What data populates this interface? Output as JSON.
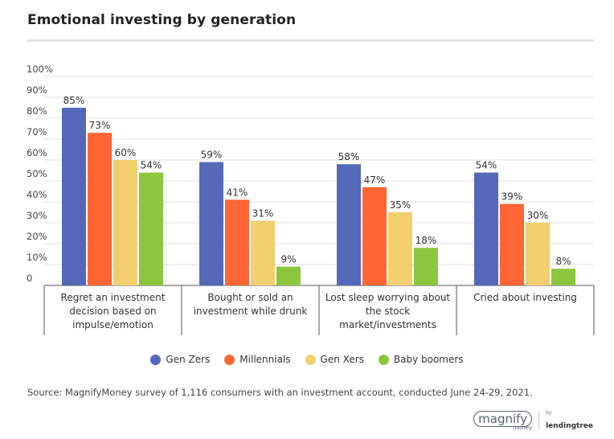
{
  "title": "Emotional investing by generation",
  "chart_data": {
    "type": "bar",
    "title": "Emotional investing by generation",
    "categories": [
      [
        "Regret an investment",
        "decision based on",
        "impulse/emotion"
      ],
      [
        "Bought or sold an",
        "investment while drunk"
      ],
      [
        "Lost sleep worrying about",
        "the stock",
        "market/investments"
      ],
      [
        "Cried about investing"
      ]
    ],
    "series": [
      {
        "name": "Gen Zers",
        "color": "#5469b8",
        "values": [
          85,
          59,
          58,
          54
        ]
      },
      {
        "name": "Millennials",
        "color": "#ff6633",
        "values": [
          73,
          41,
          47,
          39
        ]
      },
      {
        "name": "Gen Xers",
        "color": "#f2cf6e",
        "values": [
          60,
          31,
          35,
          30
        ]
      },
      {
        "name": "Baby boomers",
        "color": "#8cc63f",
        "values": [
          54,
          9,
          18,
          8
        ]
      }
    ],
    "ylim": [
      0,
      100
    ],
    "yticks": [
      "0",
      "10%",
      "20%",
      "30%",
      "40%",
      "50%",
      "60%",
      "70%",
      "80%",
      "90%",
      "100%"
    ],
    "value_suffix": "%",
    "grid": true,
    "legend_position": "bottom"
  },
  "source": "Source: MagnifyMoney survey of 1,116 consumers with an investment account, conducted June 24-29, 2021.",
  "brand": {
    "magnify": "magnify",
    "money": "money",
    "by": "by",
    "lendingtree": "lendingtree"
  }
}
